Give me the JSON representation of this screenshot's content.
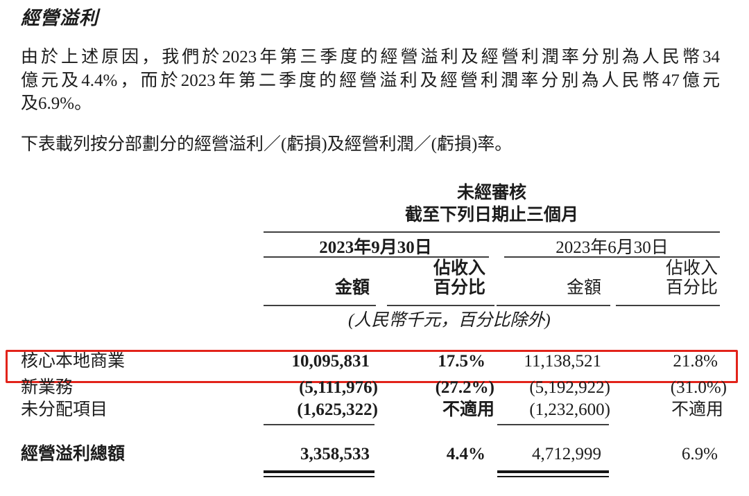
{
  "doc": {
    "title": "經營溢利",
    "paragraph1_lines": [
      "由於上述原因，我們於2023年第三季度的經營溢利及經營利潤率分別為人民幣34",
      "億元及4.4%，而於2023年第二季度的經營溢利及經營利潤率分別為人民幣47億元",
      "及6.9%。"
    ],
    "paragraph2": "下表載列按分部劃分的經營溢利／(虧損)及經營利潤／(虧損)率。"
  },
  "table": {
    "header": {
      "unaudited": "未經審核",
      "period": "截至下列日期止三個月",
      "date_left": "2023年9月30日",
      "date_right": "2023年6月30日",
      "amount_left": "金額",
      "pct_left_line1": "佔收入",
      "pct_left_line2": "百分比",
      "amount_right": "金額",
      "pct_right_line1": "佔收入",
      "pct_right_line2": "百分比",
      "unit_note": "(人民幣千元，百分比除外)"
    },
    "rows": [
      {
        "label": "核心本地商業",
        "c1": "10,095,831",
        "c2": "17.5%",
        "c3": "11,138,521",
        "c4": "21.8%",
        "highlighted": true
      },
      {
        "label": "新業務",
        "c1": "(5,111,976)",
        "c2": "(27.2%)",
        "c3": "(5,192,922)",
        "c4": "(31.0%)",
        "highlighted": false
      },
      {
        "label": "未分配項目",
        "c1": "(1,625,322)",
        "c2": "不適用",
        "c3": "(1,232,600)",
        "c4": "不適用",
        "highlighted": false
      }
    ],
    "total_row": {
      "label": "經營溢利總額",
      "c1": "3,358,533",
      "c2": "4.4%",
      "c3": "4,712,999",
      "c4": "6.9%"
    }
  },
  "colors": {
    "highlight_border": "#e2231a",
    "text": "#1c1c1c",
    "rule": "#3f3f3f"
  }
}
